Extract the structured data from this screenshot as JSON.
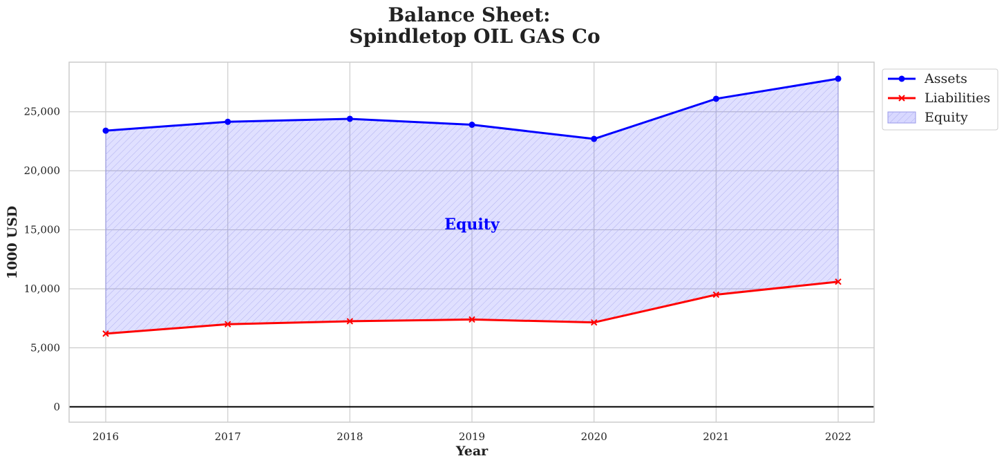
{
  "chart_data": {
    "type": "area",
    "title_line1": "Balance Sheet:",
    "title_line2": "Spindletop OIL GAS Co",
    "xlabel": "Year",
    "ylabel": "1000 USD",
    "categories": [
      "2016",
      "2017",
      "2018",
      "2019",
      "2020",
      "2021",
      "2022"
    ],
    "ylim": [
      -1300,
      29200
    ],
    "yticks": [
      0,
      5000,
      10000,
      15000,
      20000,
      25000
    ],
    "ytick_labels": [
      "0",
      "5,000",
      "10,000",
      "15,000",
      "20,000",
      "25,000"
    ],
    "series": [
      {
        "name": "Assets",
        "values": [
          23400,
          24150,
          24400,
          23900,
          22700,
          26100,
          27800
        ],
        "color": "#0000ff",
        "marker": "circle"
      },
      {
        "name": "Liabilities",
        "values": [
          6200,
          7000,
          7250,
          7400,
          7150,
          9500,
          10600
        ],
        "color": "#ff0000",
        "marker": "x"
      }
    ],
    "fill": {
      "name": "Equity",
      "color": "#0000ff",
      "pattern": "hatch"
    },
    "annotation": {
      "text": "Equity",
      "x": "2019",
      "y": 15500,
      "color": "#0000ff"
    },
    "grid": true,
    "legend_position": "outside-top-right"
  }
}
